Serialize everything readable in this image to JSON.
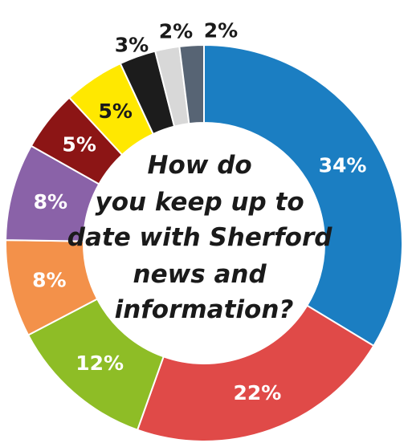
{
  "chart_data": {
    "type": "pie",
    "variant": "donut",
    "center_text": [
      "How do",
      "you keep up to",
      "date with Sherford",
      "news and",
      "information?"
    ],
    "slices": [
      {
        "value": 34,
        "label": "34%",
        "color": "#1b7ec2",
        "label_color": "#ffffff"
      },
      {
        "value": 22,
        "label": "22%",
        "color": "#e04a48",
        "label_color": "#ffffff"
      },
      {
        "value": 12,
        "label": "12%",
        "color": "#8ebd26",
        "label_color": "#ffffff"
      },
      {
        "value": 8,
        "label": "8%",
        "color": "#f3914a",
        "label_color": "#ffffff"
      },
      {
        "value": 8,
        "label": "8%",
        "color": "#8a62a8",
        "label_color": "#ffffff"
      },
      {
        "value": 5,
        "label": "5%",
        "color": "#8c1515",
        "label_color": "#ffffff"
      },
      {
        "value": 5,
        "label": "5%",
        "color": "#ffe800",
        "label_color": "#1a1a1a"
      },
      {
        "value": 3,
        "label": "3%",
        "color": "#1c1c1c",
        "label_color": "#1a1a1a"
      },
      {
        "value": 2,
        "label": "2%",
        "color": "#d8d8d8",
        "label_color": "#1a1a1a"
      },
      {
        "value": 2,
        "label": "2%",
        "color": "#576474",
        "label_color": "#1a1a1a"
      }
    ]
  }
}
